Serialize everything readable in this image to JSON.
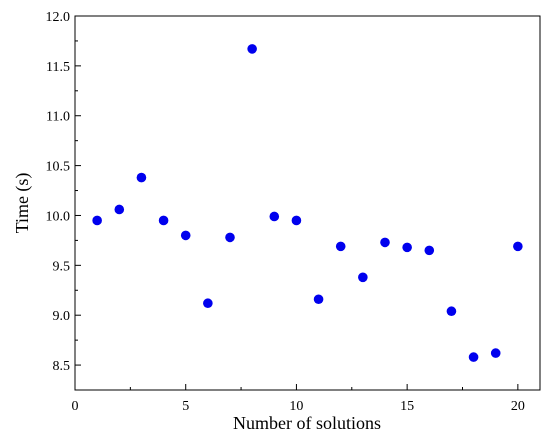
{
  "chart_data": {
    "type": "scatter",
    "xlabel": "Number of solutions",
    "ylabel": "Time (s)",
    "xlim": [
      0,
      21
    ],
    "ylim": [
      8.25,
      12.0
    ],
    "x_ticks": [
      0,
      5,
      10,
      15,
      20
    ],
    "y_ticks": [
      8.5,
      9.0,
      9.5,
      10.0,
      10.5,
      11.0,
      11.5,
      12.0
    ],
    "y_tick_labels": [
      "8.5",
      "9.0",
      "9.5",
      "10.0",
      "10.5",
      "11.0",
      "11.5",
      "12.0"
    ],
    "grid": false,
    "marker_color": "#0000ee",
    "series": [
      {
        "x": [
          1,
          2,
          3,
          4,
          5,
          6,
          7,
          8,
          9,
          10,
          11,
          12,
          13,
          14,
          15,
          16,
          17,
          18,
          19,
          20
        ],
        "y": [
          9.95,
          10.06,
          10.38,
          9.95,
          9.8,
          9.12,
          9.78,
          11.67,
          9.99,
          9.95,
          9.16,
          9.69,
          9.38,
          9.73,
          9.68,
          9.65,
          9.04,
          8.58,
          8.62,
          9.69
        ]
      }
    ]
  }
}
